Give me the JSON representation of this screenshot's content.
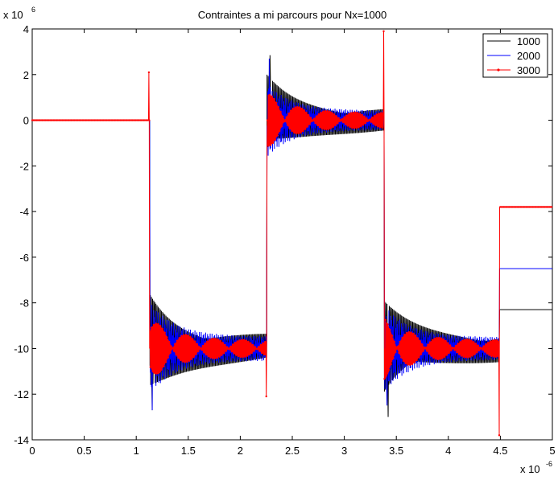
{
  "chart_data": {
    "type": "line",
    "title": "Contraintes a mi parcours pour Nx=1000",
    "xlabel": "",
    "ylabel": "",
    "x_multiplier": {
      "base": "x 10",
      "exponent": "-6"
    },
    "y_multiplier": {
      "base": "x 10",
      "exponent": "6"
    },
    "xlim": [
      0,
      5
    ],
    "ylim": [
      -14,
      4
    ],
    "xticks": [
      "0",
      "0.5",
      "1",
      "1.5",
      "2",
      "2.5",
      "3",
      "3.5",
      "4",
      "4.5",
      "5"
    ],
    "yticks": [
      "4",
      "2",
      "0",
      "-2",
      "-4",
      "-6",
      "-8",
      "-10",
      "-12",
      "-14"
    ],
    "grid": false,
    "legend_position": "top-right",
    "series": [
      {
        "name": "1000",
        "color": "#000000",
        "marker": "none",
        "description_points": {
          "x": [
            0,
            1.1,
            1.14,
            1.16,
            1.2,
            2.22,
            2.25,
            2.29,
            2.32,
            3.36,
            3.38,
            3.42,
            3.45,
            4.46,
            4.5
          ],
          "y": [
            0,
            0,
            -10,
            -12.7,
            -8.2,
            -10,
            0,
            2.85,
            0.8,
            0,
            -10,
            -13,
            -8.5,
            -10,
            -8.3
          ]
        }
      },
      {
        "name": "2000",
        "color": "#0000ff",
        "marker": "none",
        "description_points": {
          "x": [
            0,
            1.1,
            1.14,
            1.16,
            1.2,
            2.22,
            2.25,
            2.28,
            2.32,
            3.36,
            3.38,
            3.41,
            3.45,
            4.46,
            4.5
          ],
          "y": [
            0,
            0,
            -10,
            -12.7,
            -9.2,
            -10,
            0,
            2.7,
            0.5,
            0,
            -10,
            -12.5,
            -9.0,
            -10,
            -6.5
          ]
        }
      },
      {
        "name": "3000",
        "color": "#ff0000",
        "marker": "dot",
        "description_points": {
          "x": [
            0,
            1.1,
            1.12,
            1.13,
            1.15,
            2.23,
            2.25,
            2.26,
            2.28,
            3.37,
            3.38,
            3.39,
            3.41,
            4.48,
            4.49,
            4.5
          ],
          "y": [
            0,
            0,
            2.1,
            -10,
            -9.8,
            -10,
            -12.1,
            0,
            0,
            0,
            3.9,
            -10,
            -10,
            -10,
            -13.8,
            -3.8
          ]
        }
      }
    ]
  }
}
